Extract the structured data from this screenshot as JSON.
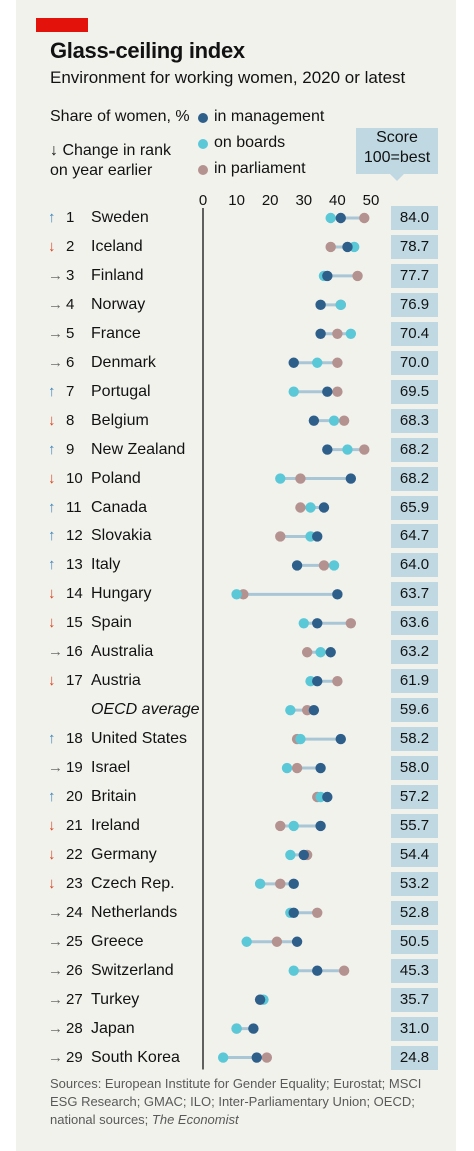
{
  "title": "Glass-ceiling index",
  "subtitle": "Environment for working women, 2020 or latest",
  "legend": {
    "share_label": "Share of women, %",
    "change_label_1": "Change in rank",
    "change_label_2": "on year earlier",
    "change_arrow": "↓",
    "series": [
      {
        "key": "management",
        "label": "in management",
        "color": "#2e5f8a"
      },
      {
        "key": "boards",
        "label": "on boards",
        "color": "#5bc8d8"
      },
      {
        "key": "parliament",
        "label": "in parliament",
        "color": "#b4928f"
      }
    ]
  },
  "score_header": {
    "line1": "Score",
    "line2": "100=best"
  },
  "colors": {
    "up": "#3e86b9",
    "down": "#d9461e",
    "same": "#6b6b6b",
    "range_line": "#a9c6d6",
    "score_box": "#bfd8e2"
  },
  "rows": [
    {
      "arrow": "↑",
      "dir": "up",
      "rank": "1",
      "country": "Sweden",
      "score": "84.0"
    },
    {
      "arrow": "↓",
      "dir": "down",
      "rank": "2",
      "country": "Iceland",
      "score": "78.7"
    },
    {
      "arrow": "→",
      "dir": "same",
      "rank": "3",
      "country": "Finland",
      "score": "77.7"
    },
    {
      "arrow": "→",
      "dir": "same",
      "rank": "4",
      "country": "Norway",
      "score": "76.9"
    },
    {
      "arrow": "→",
      "dir": "same",
      "rank": "5",
      "country": "France",
      "score": "70.4"
    },
    {
      "arrow": "→",
      "dir": "same",
      "rank": "6",
      "country": "Denmark",
      "score": "70.0"
    },
    {
      "arrow": "↑",
      "dir": "up",
      "rank": "7",
      "country": "Portugal",
      "score": "69.5"
    },
    {
      "arrow": "↓",
      "dir": "down",
      "rank": "8",
      "country": "Belgium",
      "score": "68.3"
    },
    {
      "arrow": "↑",
      "dir": "up",
      "rank": "9",
      "country": "New Zealand",
      "score": "68.2"
    },
    {
      "arrow": "↓",
      "dir": "down",
      "rank": "10",
      "country": "Poland",
      "score": "68.2"
    },
    {
      "arrow": "↑",
      "dir": "up",
      "rank": "11",
      "country": "Canada",
      "score": "65.9"
    },
    {
      "arrow": "↑",
      "dir": "up",
      "rank": "12",
      "country": "Slovakia",
      "score": "64.7"
    },
    {
      "arrow": "↑",
      "dir": "up",
      "rank": "13",
      "country": "Italy",
      "score": "64.0"
    },
    {
      "arrow": "↓",
      "dir": "down",
      "rank": "14",
      "country": "Hungary",
      "score": "63.7"
    },
    {
      "arrow": "↓",
      "dir": "down",
      "rank": "15",
      "country": "Spain",
      "score": "63.6"
    },
    {
      "arrow": "→",
      "dir": "same",
      "rank": "16",
      "country": "Australia",
      "score": "63.2"
    },
    {
      "arrow": "↓",
      "dir": "down",
      "rank": "17",
      "country": "Austria",
      "score": "61.9"
    },
    {
      "arrow": "",
      "dir": "same",
      "rank": "",
      "country": "OECD average",
      "score": "59.6",
      "italic": true
    },
    {
      "arrow": "↑",
      "dir": "up",
      "rank": "18",
      "country": "United States",
      "score": "58.2"
    },
    {
      "arrow": "→",
      "dir": "same",
      "rank": "19",
      "country": "Israel",
      "score": "58.0"
    },
    {
      "arrow": "↑",
      "dir": "up",
      "rank": "20",
      "country": "Britain",
      "score": "57.2"
    },
    {
      "arrow": "↓",
      "dir": "down",
      "rank": "21",
      "country": "Ireland",
      "score": "55.7"
    },
    {
      "arrow": "↓",
      "dir": "down",
      "rank": "22",
      "country": "Germany",
      "score": "54.4"
    },
    {
      "arrow": "↓",
      "dir": "down",
      "rank": "23",
      "country": "Czech Rep.",
      "score": "53.2"
    },
    {
      "arrow": "→",
      "dir": "same",
      "rank": "24",
      "country": "Netherlands",
      "score": "52.8"
    },
    {
      "arrow": "→",
      "dir": "same",
      "rank": "25",
      "country": "Greece",
      "score": "50.5"
    },
    {
      "arrow": "→",
      "dir": "same",
      "rank": "26",
      "country": "Switzerland",
      "score": "45.3"
    },
    {
      "arrow": "→",
      "dir": "same",
      "rank": "27",
      "country": "Turkey",
      "score": "35.7"
    },
    {
      "arrow": "→",
      "dir": "same",
      "rank": "28",
      "country": "Japan",
      "score": "31.0"
    },
    {
      "arrow": "→",
      "dir": "same",
      "rank": "29",
      "country": "South Korea",
      "score": "24.8"
    }
  ],
  "chart_data": {
    "type": "scatter",
    "xlim": [
      0,
      50
    ],
    "xticks": [
      "0",
      "10",
      "20",
      "30",
      "40",
      "50"
    ],
    "categories": [
      "Sweden",
      "Iceland",
      "Finland",
      "Norway",
      "France",
      "Denmark",
      "Portugal",
      "Belgium",
      "New Zealand",
      "Poland",
      "Canada",
      "Slovakia",
      "Italy",
      "Hungary",
      "Spain",
      "Australia",
      "Austria",
      "OECD average",
      "United States",
      "Israel",
      "Britain",
      "Ireland",
      "Germany",
      "Czech Rep.",
      "Netherlands",
      "Greece",
      "Switzerland",
      "Turkey",
      "Japan",
      "South Korea"
    ],
    "series": [
      {
        "name": "in management",
        "values": [
          41,
          43,
          37,
          35,
          35,
          27,
          37,
          33,
          37,
          44,
          36,
          34,
          28,
          40,
          34,
          38,
          34,
          33,
          41,
          35,
          37,
          35,
          30,
          27,
          27,
          28,
          34,
          17,
          15,
          16
        ]
      },
      {
        "name": "on boards",
        "values": [
          38,
          45,
          36,
          41,
          44,
          34,
          27,
          39,
          43,
          23,
          32,
          32,
          39,
          10,
          30,
          35,
          32,
          26,
          29,
          25,
          35,
          27,
          26,
          17,
          26,
          13,
          27,
          18,
          10,
          6
        ]
      },
      {
        "name": "in parliament",
        "values": [
          48,
          38,
          46,
          41,
          40,
          40,
          40,
          42,
          48,
          29,
          29,
          23,
          36,
          12,
          44,
          31,
          40,
          31,
          28,
          28,
          34,
          23,
          31,
          23,
          34,
          22,
          42,
          17,
          10,
          19
        ]
      }
    ],
    "score": [
      84.0,
      78.7,
      77.7,
      76.9,
      70.4,
      70.0,
      69.5,
      68.3,
      68.2,
      68.2,
      65.9,
      64.7,
      64.0,
      63.7,
      63.6,
      63.2,
      61.9,
      59.6,
      58.2,
      58.0,
      57.2,
      55.7,
      54.4,
      53.2,
      52.8,
      50.5,
      45.3,
      35.7,
      31.0,
      24.8
    ]
  },
  "sources": {
    "text": "Sources: European Institute for Gender Equality; Eurostat; MSCI ESG Research; GMAC; ILO; Inter-Parliamentary Union; OECD; national sources; ",
    "italic": "The Economist"
  }
}
